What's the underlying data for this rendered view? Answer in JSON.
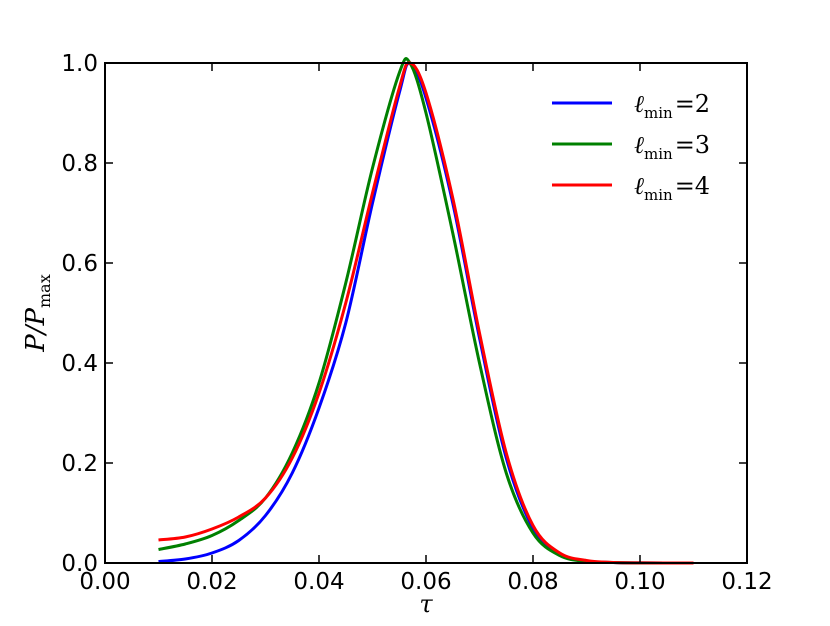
{
  "chart_data": {
    "type": "line",
    "xlabel": "τ",
    "ylabel": "P/P",
    "ylabel_sub": "max",
    "xlim": [
      0.0,
      0.12
    ],
    "ylim": [
      0.0,
      1.0
    ],
    "xticks": [
      "0.00",
      "0.02",
      "0.04",
      "0.06",
      "0.08",
      "0.10",
      "0.12"
    ],
    "yticks": [
      "0.0",
      "0.2",
      "0.4",
      "0.6",
      "0.8",
      "1.0"
    ],
    "grid": false,
    "legend_position": "top-right",
    "x": [
      0.01,
      0.015,
      0.02,
      0.025,
      0.03,
      0.035,
      0.04,
      0.045,
      0.05,
      0.055,
      0.057,
      0.06,
      0.065,
      0.07,
      0.075,
      0.08,
      0.085,
      0.09,
      0.095,
      0.1,
      0.11
    ],
    "series": [
      {
        "name": "ℓmin = 2",
        "label_main": "ℓ",
        "label_sub": "min",
        "label_value": "=2",
        "color": "#0000ff",
        "values": [
          0.003,
          0.008,
          0.02,
          0.045,
          0.095,
          0.18,
          0.31,
          0.48,
          0.72,
          0.94,
          1.0,
          0.93,
          0.72,
          0.45,
          0.21,
          0.07,
          0.018,
          0.004,
          0.001,
          0.0003,
          0.0
        ]
      },
      {
        "name": "ℓmin = 3",
        "label_main": "ℓ",
        "label_sub": "min",
        "label_value": "=3",
        "color": "#008000",
        "values": [
          0.027,
          0.038,
          0.055,
          0.085,
          0.13,
          0.22,
          0.36,
          0.56,
          0.79,
          0.98,
          1.0,
          0.9,
          0.66,
          0.4,
          0.18,
          0.06,
          0.015,
          0.003,
          0.001,
          0.0002,
          0.0
        ]
      },
      {
        "name": "ℓmin = 4",
        "label_main": "ℓ",
        "label_sub": "min",
        "label_value": "=4",
        "color": "#ff0000",
        "values": [
          0.046,
          0.052,
          0.068,
          0.092,
          0.13,
          0.21,
          0.34,
          0.52,
          0.74,
          0.95,
          1.0,
          0.94,
          0.73,
          0.46,
          0.22,
          0.075,
          0.02,
          0.005,
          0.001,
          0.0003,
          0.0
        ]
      }
    ]
  }
}
